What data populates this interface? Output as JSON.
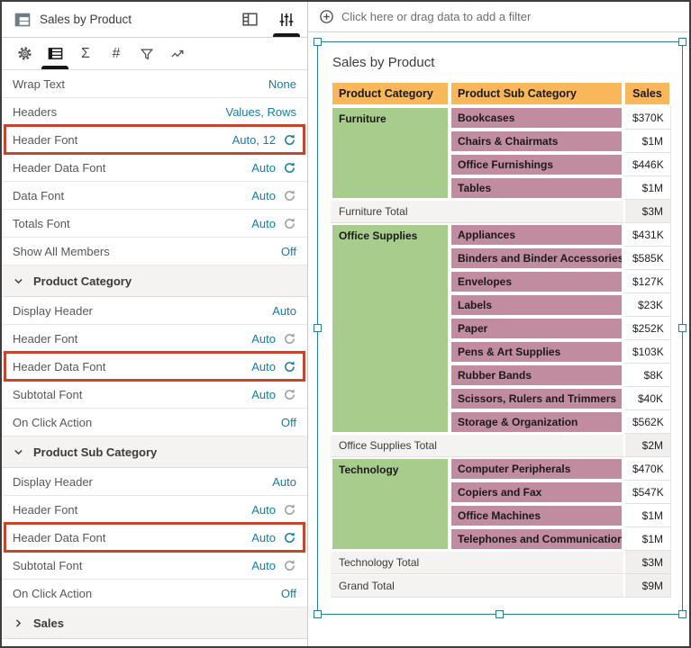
{
  "panel": {
    "title": "Sales by Product",
    "header_icons": [
      {
        "name": "grammar-panel-icon",
        "active": false
      },
      {
        "name": "properties-icon",
        "active": true
      }
    ],
    "tabs": [
      {
        "name": "general-settings",
        "icon": "gear",
        "active": false
      },
      {
        "name": "table-style",
        "icon": "table",
        "active": true
      },
      {
        "name": "totals",
        "icon": "sigma",
        "active": false
      },
      {
        "name": "number-format",
        "icon": "hash",
        "active": false
      },
      {
        "name": "filters",
        "icon": "funnel",
        "active": false
      },
      {
        "name": "analytics",
        "icon": "trend",
        "active": false
      }
    ],
    "rows": [
      {
        "type": "prop",
        "label": "Wrap Text",
        "value": "None"
      },
      {
        "type": "prop",
        "label": "Headers",
        "value": "Values, Rows"
      },
      {
        "type": "prop",
        "label": "Header Font",
        "value": "Auto, 12",
        "refresh": "active",
        "highlight": true
      },
      {
        "type": "prop",
        "label": "Header Data Font",
        "value": "Auto",
        "refresh": "active"
      },
      {
        "type": "prop",
        "label": "Data Font",
        "value": "Auto",
        "refresh": "inactive"
      },
      {
        "type": "prop",
        "label": "Totals Font",
        "value": "Auto",
        "refresh": "inactive"
      },
      {
        "type": "prop",
        "label": "Show All Members",
        "value": "Off"
      },
      {
        "type": "section",
        "label": "Product Category",
        "expanded": true
      },
      {
        "type": "prop",
        "label": "Display Header",
        "value": "Auto"
      },
      {
        "type": "prop",
        "label": "Header Font",
        "value": "Auto",
        "refresh": "inactive"
      },
      {
        "type": "prop",
        "label": "Header Data Font",
        "value": "Auto",
        "refresh": "active",
        "highlight": true
      },
      {
        "type": "prop",
        "label": "Subtotal Font",
        "value": "Auto",
        "refresh": "inactive"
      },
      {
        "type": "prop",
        "label": "On Click Action",
        "value": "Off"
      },
      {
        "type": "section",
        "label": "Product Sub Category",
        "expanded": true
      },
      {
        "type": "prop",
        "label": "Display Header",
        "value": "Auto"
      },
      {
        "type": "prop",
        "label": "Header Font",
        "value": "Auto",
        "refresh": "inactive"
      },
      {
        "type": "prop",
        "label": "Header Data Font",
        "value": "Auto",
        "refresh": "active",
        "highlight": true
      },
      {
        "type": "prop",
        "label": "Subtotal Font",
        "value": "Auto",
        "refresh": "inactive"
      },
      {
        "type": "prop",
        "label": "On Click Action",
        "value": "Off"
      },
      {
        "type": "section",
        "label": "Sales",
        "expanded": false
      }
    ]
  },
  "canvas": {
    "filter_bar": {
      "icon": "plus-circle-icon",
      "text": "Click here or drag data to add a filter"
    },
    "viz": {
      "title": "Sales by Product",
      "selected": true
    }
  },
  "chart_data": {
    "type": "table",
    "title": "Sales by Product",
    "columns": [
      "Product Category",
      "Product Sub Category",
      "Sales"
    ],
    "groups": [
      {
        "category": "Furniture",
        "rows": [
          [
            "Bookcases",
            "$370K"
          ],
          [
            "Chairs & Chairmats",
            "$1M"
          ],
          [
            "Office Furnishings",
            "$446K"
          ],
          [
            "Tables",
            "$1M"
          ]
        ],
        "total_label": "Furniture Total",
        "total": "$3M"
      },
      {
        "category": "Office Supplies",
        "rows": [
          [
            "Appliances",
            "$431K"
          ],
          [
            "Binders and Binder Accessories",
            "$585K"
          ],
          [
            "Envelopes",
            "$127K"
          ],
          [
            "Labels",
            "$23K"
          ],
          [
            "Paper",
            "$252K"
          ],
          [
            "Pens & Art Supplies",
            "$103K"
          ],
          [
            "Rubber Bands",
            "$8K"
          ],
          [
            "Scissors, Rulers and Trimmers",
            "$40K"
          ],
          [
            "Storage & Organization",
            "$562K"
          ]
        ],
        "total_label": "Office Supplies Total",
        "total": "$2M"
      },
      {
        "category": "Technology",
        "rows": [
          [
            "Computer Peripherals",
            "$470K"
          ],
          [
            "Copiers and Fax",
            "$547K"
          ],
          [
            "Office Machines",
            "$1M"
          ],
          [
            "Telephones and Communication",
            "$1M"
          ]
        ],
        "total_label": "Technology Total",
        "total": "$3M"
      }
    ],
    "grand_total": {
      "label": "Grand Total",
      "value": "$9M"
    }
  },
  "colors": {
    "header_bg": "#F8B75B",
    "category_bg": "#A7CC8C",
    "subcategory_bg": "#C18CA0",
    "total_bg": "#F4F3F2",
    "link": "#147CA6",
    "highlight": "#C5452F",
    "selection": "#2A7D9C"
  }
}
